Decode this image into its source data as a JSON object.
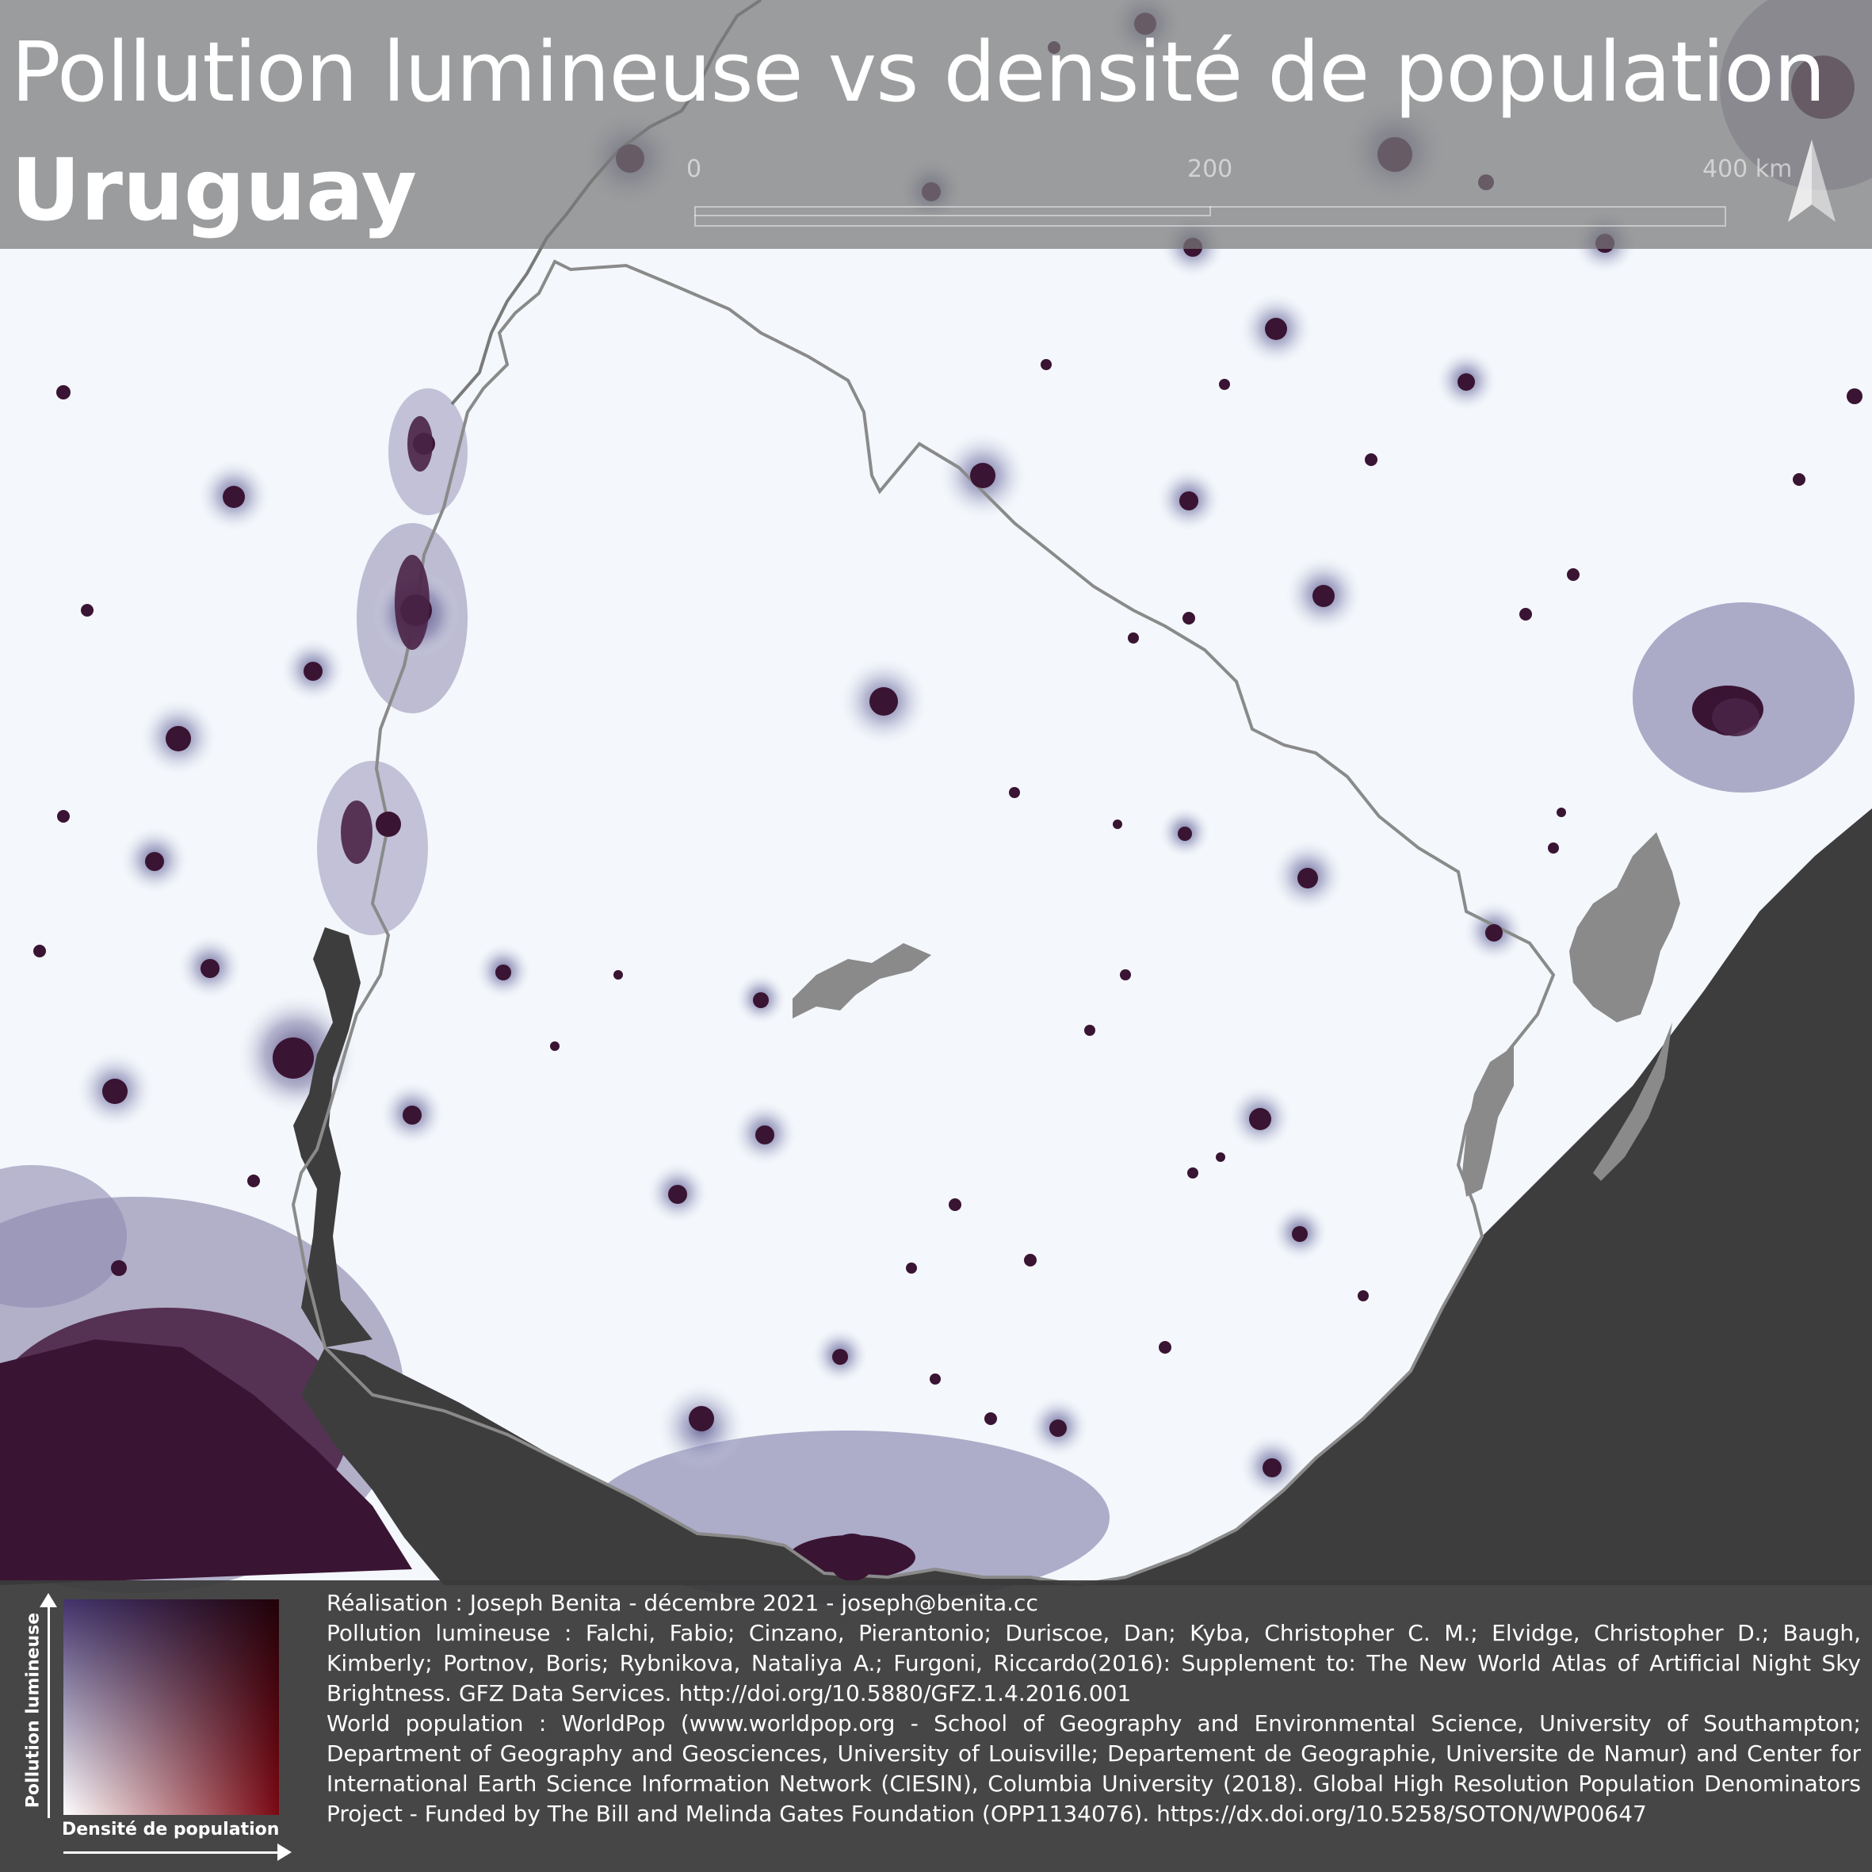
{
  "title": {
    "line1": "Pollution lumineuse vs densité de population",
    "line2": "Uruguay"
  },
  "scale": {
    "labels": [
      "0",
      "200",
      "400 km"
    ]
  },
  "legend": {
    "y_axis_label": "Pollution lumineuse",
    "x_axis_label": "Densité de population",
    "color_low": "#ffffff",
    "color_high_population": "#7a0712",
    "color_high_light": "#42336c"
  },
  "credits": {
    "author": "Réalisation : Joseph Benita - décembre 2021 - joseph@benita.cc",
    "light_pollution_source": "Pollution lumineuse : Falchi, Fabio; Cinzano, Pierantonio; Duriscoe, Dan; Kyba, Christopher C. M.; Elvidge, Christopher D.; Baugh, Kimberly; Portnov, Boris; Rybnikova, Nataliya A.; Furgoni, Riccardo(2016): Supplement to: The New World Atlas of Artificial Night Sky Brightness. GFZ Data Services. http://doi.org/10.5880/GFZ.1.4.2016.001",
    "population_source": "World population : WorldPop (www.worldpop.org - School of Geography and Environmental Science, University of Southampton; Department of Geography and Geosciences, University of Louisville; Departement de Geographie, Universite de Namur) and Center for International Earth Science Information Network (CIESIN), Columbia University (2018). Global High Resolution Population Denominators Project - Funded by The Bill and Melinda Gates Foundation (OPP1134076). https://dx.doi.org/10.5258/SOTON/WP00647"
  },
  "colors": {
    "background": "#f4f7fb",
    "glow": "#6f6f9c",
    "city_core": "#3a1433",
    "ocean": "#3d3d3d",
    "lagoon": "#8a8a8a",
    "border": "#808080"
  }
}
